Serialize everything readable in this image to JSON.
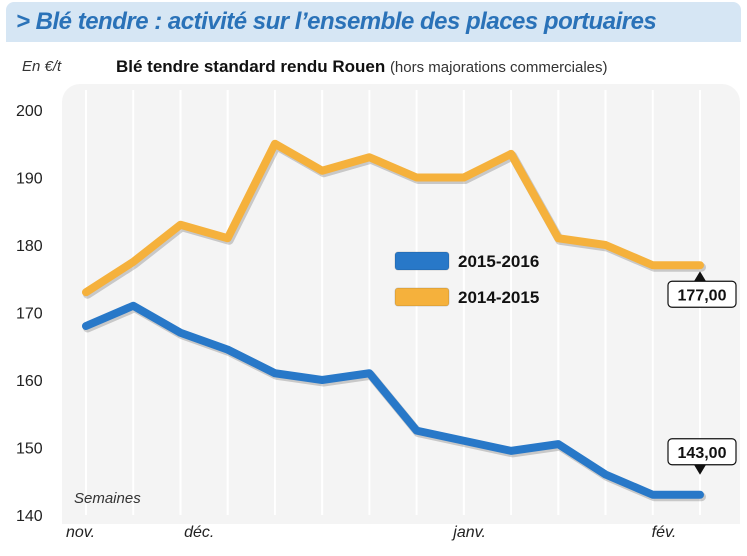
{
  "header": {
    "title": "> Blé tendre : activité sur l’ensemble des places portuaires"
  },
  "chart_data": {
    "type": "line",
    "title": "Blé tendre standard rendu Rouen",
    "subtitle": "(hors majorations commerciales)",
    "ylabel": "En €/t",
    "xlabel": "Semaines",
    "ylim": [
      140,
      200
    ],
    "yticks": [
      140,
      150,
      160,
      170,
      180,
      190,
      200
    ],
    "grid": "vertical",
    "x": [
      0,
      1,
      2,
      3,
      4,
      5,
      6,
      7,
      8,
      9,
      10,
      11,
      12,
      13
    ],
    "month_labels": [
      {
        "label": "nov.",
        "x": 0
      },
      {
        "label": "déc.",
        "x": 2.5
      },
      {
        "label": "janv.",
        "x": 8.2
      },
      {
        "label": "fév.",
        "x": 12.4
      }
    ],
    "series": [
      {
        "name": "2015-2016",
        "color": "#2878c8",
        "values": [
          168,
          171,
          167,
          164.5,
          161,
          160,
          161,
          152.5,
          151,
          149.5,
          150.5,
          146,
          143,
          143
        ],
        "end_label": "143,00"
      },
      {
        "name": "2014-2015",
        "color": "#f5b13c",
        "values": [
          173,
          177.5,
          183,
          181,
          195,
          191,
          193,
          190,
          190,
          193.5,
          181,
          180,
          177,
          177
        ],
        "end_label": "177,00"
      }
    ],
    "legend": "center-right"
  }
}
